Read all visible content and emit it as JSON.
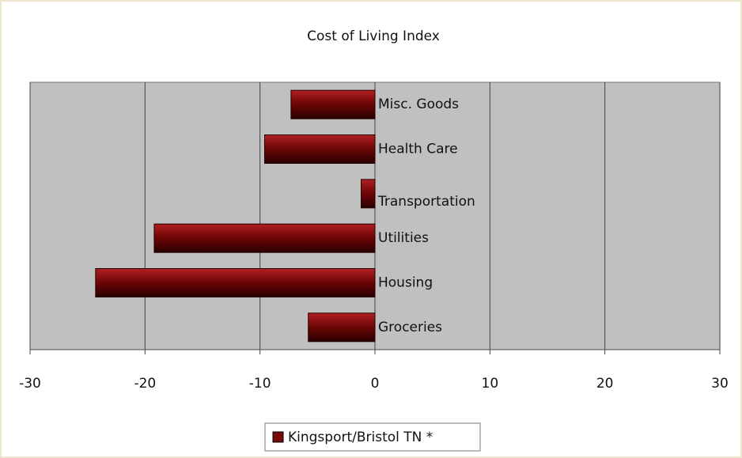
{
  "chart_data": {
    "type": "hbar",
    "title": "Cost of Living Index",
    "categories": [
      "Groceries",
      "Housing",
      "Utilities",
      "Transportation",
      "Health Care",
      "Misc. Goods"
    ],
    "series": [
      {
        "name": "Kingsport/Bristol TN *",
        "color": "#7a0a0a",
        "values": [
          -5.8,
          -24.3,
          -19.2,
          -1.2,
          -9.6,
          -7.3
        ]
      }
    ],
    "xlim": [
      -30,
      30
    ],
    "xticks": [
      -30,
      -20,
      -10,
      0,
      10,
      20,
      30
    ],
    "grid": true,
    "legend": "bottom"
  }
}
